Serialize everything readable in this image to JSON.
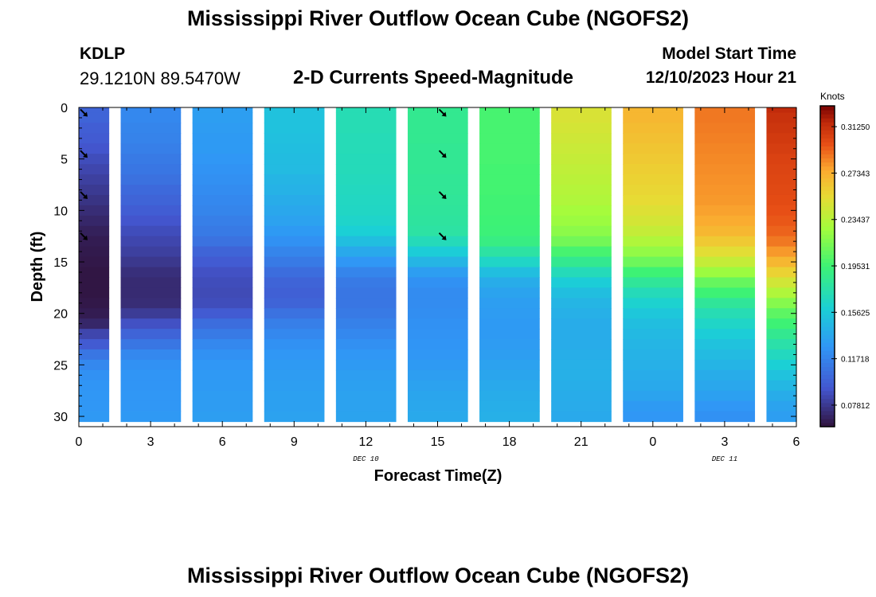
{
  "header": {
    "title": "Mississippi River Outflow Ocean Cube (NGOFS2)",
    "station": "KDLP",
    "coords": "29.1210N  89.5470W",
    "subtitle": "2-D Currents Speed-Magnitude",
    "start_label": "Model Start Time",
    "start_value": "12/10/2023 Hour 21"
  },
  "footer": {
    "title": "Mississippi River Outflow Ocean Cube (NGOFS2)"
  },
  "chart_data": {
    "type": "heatmap",
    "title": "2-D Currents Speed-Magnitude",
    "xlabel": "Forecast Time(Z)",
    "ylabel": "Depth (ft)",
    "x_tick_labels": [
      "0",
      "3",
      "6",
      "9",
      "12",
      "15",
      "18",
      "21",
      "0",
      "3",
      "6"
    ],
    "x_date_labels": [
      {
        "label": "DEC 10",
        "at_hour": 12
      },
      {
        "label": "DEC 11",
        "at_hour": 27
      }
    ],
    "x_range_hours": [
      0,
      30
    ],
    "y_tick_labels": [
      "0",
      "5",
      "10",
      "15",
      "20",
      "25",
      "30"
    ],
    "y_range_ft": [
      0,
      31
    ],
    "colorbar": {
      "unit": "Knots",
      "range": [
        0.06,
        0.33
      ],
      "tick_labels": [
        "0.31250",
        "0.27343",
        "0.23437",
        "0.19531",
        "0.15625",
        "0.11718",
        "0.07812"
      ],
      "tick_values": [
        0.3125,
        0.27343,
        0.23437,
        0.19531,
        0.15625,
        0.11718,
        0.07812
      ]
    },
    "depth_levels_ft": [
      0,
      1,
      2,
      3,
      4,
      5,
      6,
      7,
      8,
      9,
      10,
      11,
      12,
      13,
      14,
      15,
      16,
      17,
      18,
      19,
      20,
      21,
      22,
      23,
      24,
      25,
      26,
      27,
      28,
      29,
      30
    ],
    "time_columns_hours": [
      0,
      3,
      6,
      9,
      12,
      15,
      18,
      21,
      24,
      27,
      30
    ],
    "speed_knots": [
      [
        0.1,
        0.1,
        0.097,
        0.095,
        0.092,
        0.088,
        0.085,
        0.082,
        0.079,
        0.076,
        0.073,
        0.07,
        0.067,
        0.065,
        0.064,
        0.063,
        0.062,
        0.062,
        0.062,
        0.063,
        0.065,
        0.07,
        0.085,
        0.095,
        0.11,
        0.12,
        0.125,
        0.127,
        0.128,
        0.128,
        0.129
      ],
      [
        0.12,
        0.12,
        0.118,
        0.117,
        0.115,
        0.112,
        0.11,
        0.107,
        0.103,
        0.1,
        0.096,
        0.092,
        0.088,
        0.085,
        0.082,
        0.078,
        0.074,
        0.072,
        0.072,
        0.073,
        0.08,
        0.09,
        0.1,
        0.11,
        0.12,
        0.125,
        0.127,
        0.127,
        0.128,
        0.128,
        0.129
      ],
      [
        0.132,
        0.132,
        0.131,
        0.13,
        0.13,
        0.128,
        0.126,
        0.124,
        0.122,
        0.12,
        0.118,
        0.115,
        0.112,
        0.108,
        0.1,
        0.095,
        0.09,
        0.088,
        0.087,
        0.088,
        0.095,
        0.105,
        0.112,
        0.12,
        0.125,
        0.128,
        0.129,
        0.13,
        0.131,
        0.131,
        0.132
      ],
      [
        0.152,
        0.152,
        0.152,
        0.151,
        0.15,
        0.149,
        0.148,
        0.145,
        0.143,
        0.14,
        0.137,
        0.134,
        0.13,
        0.125,
        0.118,
        0.112,
        0.105,
        0.1,
        0.098,
        0.1,
        0.108,
        0.115,
        0.12,
        0.125,
        0.128,
        0.13,
        0.131,
        0.132,
        0.133,
        0.133,
        0.134
      ],
      [
        0.172,
        0.172,
        0.172,
        0.171,
        0.171,
        0.17,
        0.17,
        0.169,
        0.168,
        0.167,
        0.166,
        0.164,
        0.16,
        0.15,
        0.138,
        0.128,
        0.118,
        0.112,
        0.11,
        0.11,
        0.112,
        0.116,
        0.12,
        0.124,
        0.128,
        0.13,
        0.132,
        0.133,
        0.134,
        0.134,
        0.135
      ],
      [
        0.185,
        0.185,
        0.185,
        0.185,
        0.184,
        0.184,
        0.184,
        0.183,
        0.183,
        0.182,
        0.181,
        0.18,
        0.178,
        0.17,
        0.158,
        0.145,
        0.132,
        0.125,
        0.122,
        0.122,
        0.123,
        0.125,
        0.126,
        0.127,
        0.128,
        0.13,
        0.132,
        0.134,
        0.136,
        0.137,
        0.138
      ],
      [
        0.198,
        0.198,
        0.198,
        0.198,
        0.198,
        0.198,
        0.197,
        0.197,
        0.197,
        0.196,
        0.196,
        0.195,
        0.194,
        0.19,
        0.178,
        0.165,
        0.15,
        0.14,
        0.135,
        0.132,
        0.131,
        0.13,
        0.13,
        0.131,
        0.132,
        0.134,
        0.136,
        0.138,
        0.14,
        0.141,
        0.142
      ],
      [
        0.248,
        0.248,
        0.246,
        0.244,
        0.242,
        0.24,
        0.238,
        0.236,
        0.234,
        0.232,
        0.228,
        0.225,
        0.22,
        0.212,
        0.198,
        0.185,
        0.17,
        0.158,
        0.15,
        0.145,
        0.142,
        0.14,
        0.14,
        0.14,
        0.141,
        0.142,
        0.142,
        0.141,
        0.14,
        0.139,
        0.138
      ],
      [
        0.27,
        0.27,
        0.268,
        0.266,
        0.264,
        0.262,
        0.26,
        0.258,
        0.256,
        0.254,
        0.25,
        0.246,
        0.24,
        0.232,
        0.222,
        0.21,
        0.195,
        0.182,
        0.17,
        0.162,
        0.155,
        0.15,
        0.147,
        0.145,
        0.143,
        0.142,
        0.14,
        0.138,
        0.135,
        0.13,
        0.128
      ],
      [
        0.288,
        0.288,
        0.287,
        0.286,
        0.285,
        0.284,
        0.283,
        0.282,
        0.281,
        0.28,
        0.278,
        0.275,
        0.27,
        0.262,
        0.252,
        0.24,
        0.225,
        0.208,
        0.195,
        0.182,
        0.172,
        0.165,
        0.158,
        0.152,
        0.148,
        0.144,
        0.14,
        0.137,
        0.133,
        0.128,
        0.125
      ],
      [
        0.315,
        0.312,
        0.31,
        0.308,
        0.306,
        0.304,
        0.303,
        0.302,
        0.301,
        0.3,
        0.298,
        0.296,
        0.293,
        0.288,
        0.28,
        0.27,
        0.258,
        0.245,
        0.232,
        0.218,
        0.205,
        0.195,
        0.185,
        0.176,
        0.168,
        0.16,
        0.152,
        0.146,
        0.14,
        0.135,
        0.132
      ]
    ],
    "arrow_columns_hours": [
      0,
      15
    ],
    "arrow_depths_ft": [
      0.5,
      4.5,
      8.5,
      12.5
    ]
  }
}
